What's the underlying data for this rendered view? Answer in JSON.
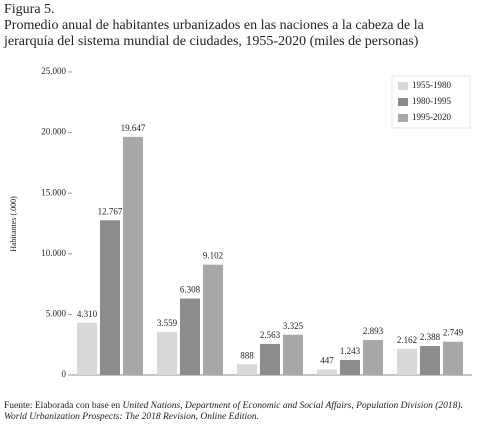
{
  "figure_label": "Figura 5.",
  "chart_data": {
    "type": "bar",
    "title": "Promedio anual de habitantes urbanizados en las naciones a la cabeza de la jerarquía del sistema mundial de ciudades, 1955-2020 (miles de personas)",
    "y_label": "Habitantes (.000)",
    "categories": [
      null,
      null,
      null,
      null,
      null
    ],
    "series": [
      {
        "name": "1955-1980",
        "color": "#d9d9d9",
        "values": [
          4310,
          3559,
          888,
          447,
          2162
        ],
        "value_labels": [
          "4.310",
          "3.559",
          "888",
          "447",
          "2.162"
        ]
      },
      {
        "name": "1980-1995",
        "color": "#8c8c8c",
        "values": [
          12767,
          6308,
          2563,
          1243,
          2388
        ],
        "value_labels": [
          "12.767",
          "6.308",
          "2.563",
          "1.243",
          "2.388"
        ]
      },
      {
        "name": "1995-2020",
        "color": "#a8a8a8",
        "values": [
          19647,
          9102,
          3325,
          2893,
          2749
        ],
        "value_labels": [
          "19.647",
          "9.102",
          "3.325",
          "2.893",
          "2.749"
        ]
      }
    ],
    "ylim": [
      0,
      25000
    ],
    "yticks": [
      0,
      {
        "value": 5000,
        "label": "5.000"
      },
      {
        "value": 10000,
        "label": "10.000"
      },
      {
        "value": 15000,
        "label": "15.000"
      },
      {
        "value": 20000,
        "label": "20.000"
      },
      {
        "value": 25000,
        "label": "25.000"
      }
    ],
    "grid": false,
    "legend": "upper right"
  },
  "source": {
    "prefix": "Fuente: Elaborada con base en",
    "citation": "United Nations, Department of Economic and Social Affairs, Population Division (2018). World Urbanization Prospects: The 2018 Revision, Online Edition."
  }
}
